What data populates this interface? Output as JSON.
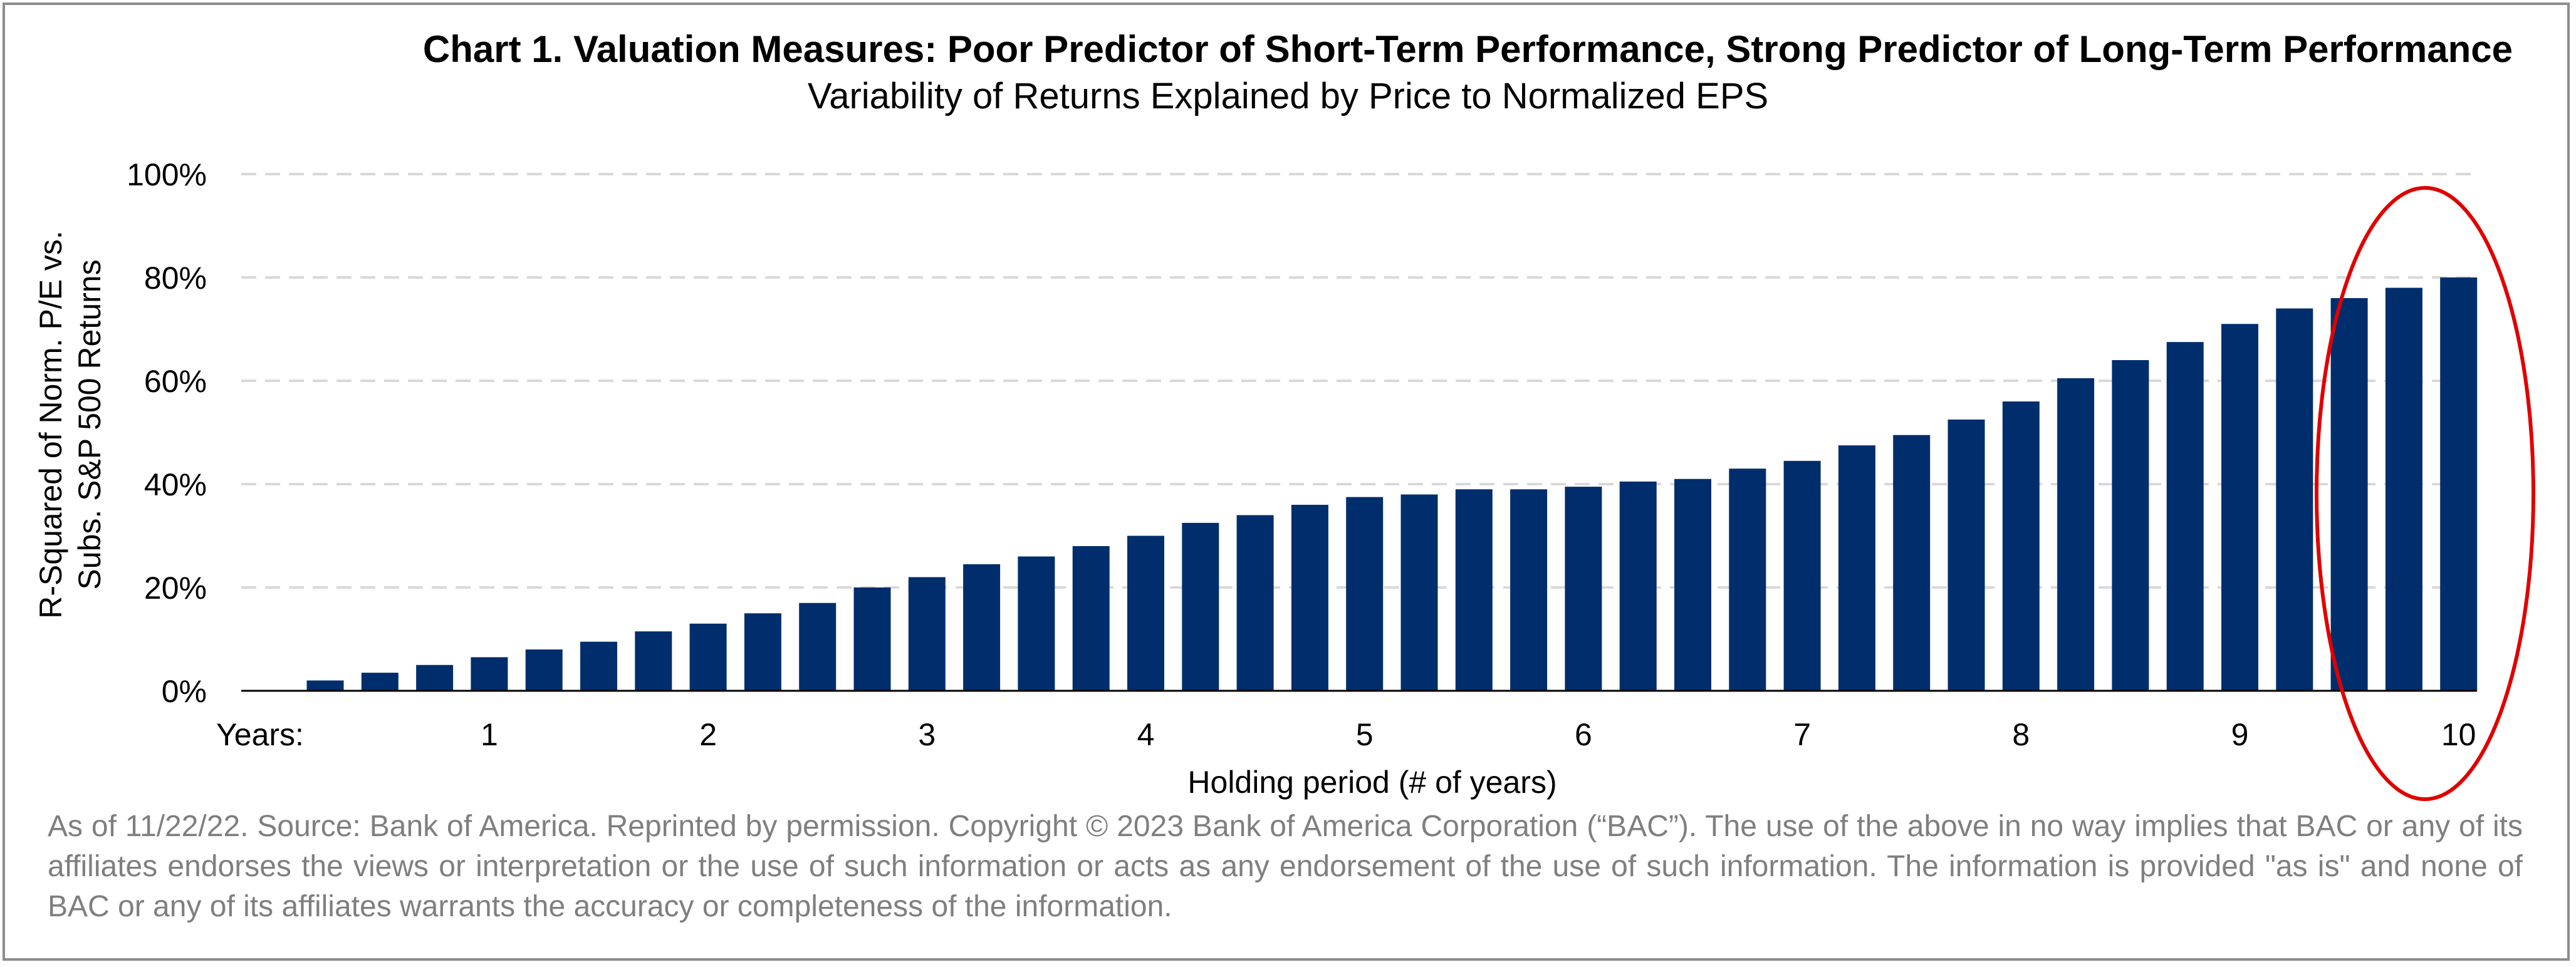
{
  "chart_data": {
    "type": "bar",
    "title": "Chart 1. Valuation Measures: Poor Predictor of Short-Term Performance, Strong Predictor of Long-Term Performance",
    "subtitle": "Variability of Returns Explained by Price to Normalized EPS",
    "ylabel_line1": "R-Squared of Norm. P/E vs.",
    "ylabel_line2": "Subs. S&P 500 Returns",
    "xlabel": "Holding period (# of years)",
    "x_prefix_label": "Years:",
    "ylim": [
      0,
      100
    ],
    "y_ticks": [
      "0%",
      "20%",
      "40%",
      "60%",
      "80%",
      "100%"
    ],
    "y_tick_values": [
      0,
      20,
      40,
      60,
      80,
      100
    ],
    "year_labels": [
      "1",
      "2",
      "3",
      "4",
      "5",
      "6",
      "7",
      "8",
      "9",
      "10"
    ],
    "bar_values": [
      2,
      3.5,
      5,
      6.5,
      8,
      9.5,
      11.5,
      13,
      15,
      17,
      20,
      22,
      24.5,
      26,
      28,
      30,
      32.5,
      34,
      36,
      37.5,
      38,
      39,
      39,
      39.5,
      40.5,
      41,
      43,
      44.5,
      47.5,
      49.5,
      52.5,
      56,
      60.5,
      64,
      67.5,
      71,
      74,
      76,
      78,
      80
    ],
    "bar_color": "#002e6d",
    "grid": true,
    "grid_color": "#d9d9d9",
    "highlight_color": "#e00000"
  },
  "footnote": "As of 11/22/22. Source: Bank of America. Reprinted by permission. Copyright © 2023 Bank of America Corporation (“BAC”). The use of the above in no way implies that BAC or any of its affiliates endorses the views or interpretation or the use of such information or acts as any endorsement of the use of such information. The information is provided \"as is\" and none of BAC or any of its affiliates warrants the accuracy or completeness of the information."
}
